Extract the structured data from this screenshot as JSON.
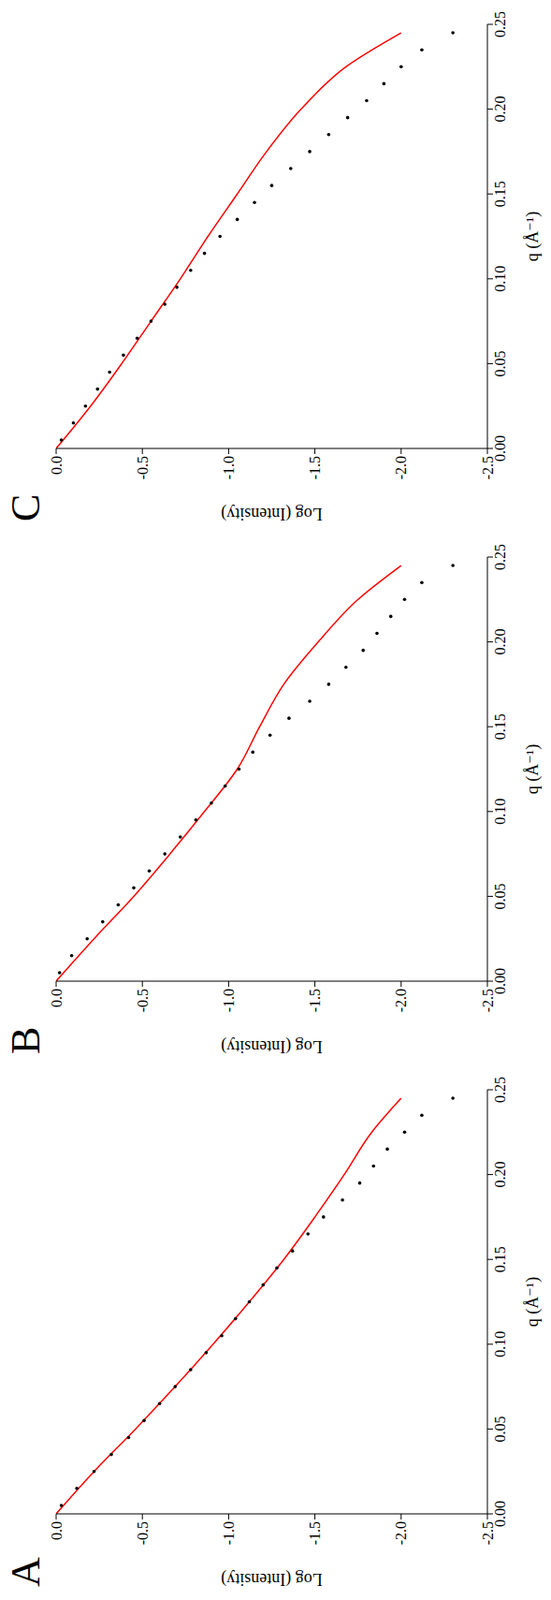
{
  "chart_data": [
    {
      "type": "scatter",
      "panel": "A",
      "x_label": "q (Å⁻¹)",
      "y_label": "Log (Intensity)",
      "xlim": [
        0,
        0.25
      ],
      "ylim": [
        -2.5,
        0
      ],
      "xticks": [
        {
          "value": 0,
          "label": "0.00"
        },
        0.05,
        {
          "value": 0.1,
          "label": "0.10"
        },
        0.15,
        {
          "value": 0.2,
          "label": "0.20"
        },
        0.25
      ],
      "yticks": [
        {
          "value": 0,
          "label": "0.0"
        },
        -0.5,
        {
          "value": -1,
          "label": "-1.0"
        },
        -1.5,
        {
          "value": -2,
          "label": "-2.0"
        },
        -2.5
      ],
      "series": [
        {
          "type": "scatter",
          "color": "#000000",
          "marker": "circle",
          "x": [
            0.005,
            0.015,
            0.025,
            0.035,
            0.045,
            0.055,
            0.065,
            0.075,
            0.085,
            0.095,
            0.105,
            0.115,
            0.125,
            0.135,
            0.145,
            0.155,
            0.165,
            0.175,
            0.185,
            0.195,
            0.205,
            0.215,
            0.225,
            0.235,
            0.245
          ],
          "values": [
            -0.03,
            -0.12,
            -0.22,
            -0.32,
            -0.42,
            -0.51,
            -0.6,
            -0.69,
            -0.78,
            -0.87,
            -0.96,
            -1.04,
            -1.12,
            -1.2,
            -1.28,
            -1.37,
            -1.46,
            -1.55,
            -1.66,
            -1.76,
            -1.84,
            -1.92,
            -2.02,
            -2.12,
            -2.3
          ]
        },
        {
          "type": "line",
          "color": "#ff0000",
          "line_style": "solid",
          "x": [
            0,
            0.025,
            0.05,
            0.075,
            0.1,
            0.125,
            0.15,
            0.175,
            0.2,
            0.225,
            0.245
          ],
          "values": [
            0,
            -0.22,
            -0.46,
            -0.69,
            -0.91,
            -1.12,
            -1.32,
            -1.5,
            -1.67,
            -1.83,
            -2.0
          ]
        }
      ]
    },
    {
      "type": "scatter",
      "panel": "B",
      "x_label": "q (Å⁻¹)",
      "y_label": "Log (Intensity)",
      "xlim": [
        0,
        0.25
      ],
      "ylim": [
        -2.5,
        0
      ],
      "xticks": [
        {
          "value": 0,
          "label": "0.00"
        },
        0.05,
        {
          "value": 0.1,
          "label": "0.10"
        },
        0.15,
        {
          "value": 0.2,
          "label": "0.20"
        },
        0.25
      ],
      "yticks": [
        {
          "value": 0,
          "label": "0.0"
        },
        -0.5,
        {
          "value": -1,
          "label": "-1.0"
        },
        -1.5,
        {
          "value": -2,
          "label": "-2.0"
        },
        -2.5
      ],
      "series": [
        {
          "type": "scatter",
          "color": "#000000",
          "marker": "circle",
          "x": [
            0.005,
            0.015,
            0.025,
            0.035,
            0.045,
            0.055,
            0.065,
            0.075,
            0.085,
            0.095,
            0.105,
            0.115,
            0.125,
            0.135,
            0.145,
            0.155,
            0.165,
            0.175,
            0.185,
            0.195,
            0.205,
            0.215,
            0.225,
            0.235,
            0.245
          ],
          "values": [
            -0.02,
            -0.09,
            -0.18,
            -0.27,
            -0.36,
            -0.45,
            -0.54,
            -0.63,
            -0.72,
            -0.81,
            -0.9,
            -0.98,
            -1.06,
            -1.14,
            -1.24,
            -1.35,
            -1.47,
            -1.58,
            -1.68,
            -1.78,
            -1.86,
            -1.94,
            -2.02,
            -2.12,
            -2.3
          ]
        },
        {
          "type": "line",
          "color": "#ff0000",
          "line_style": "solid",
          "x": [
            0,
            0.025,
            0.05,
            0.075,
            0.1,
            0.125,
            0.15,
            0.175,
            0.2,
            0.225,
            0.245
          ],
          "values": [
            0,
            -0.22,
            -0.45,
            -0.66,
            -0.86,
            -1.05,
            -1.18,
            -1.32,
            -1.52,
            -1.75,
            -2.0
          ]
        }
      ]
    },
    {
      "type": "scatter",
      "panel": "C",
      "x_label": "q (Å⁻¹)",
      "y_label": "Log (Intensity)",
      "xlim": [
        0,
        0.25
      ],
      "ylim": [
        -2.5,
        0
      ],
      "xticks": [
        {
          "value": 0,
          "label": "0.00"
        },
        0.05,
        {
          "value": 0.1,
          "label": "0.10"
        },
        0.15,
        {
          "value": 0.2,
          "label": "0.20"
        },
        0.25
      ],
      "yticks": [
        {
          "value": 0,
          "label": "0.0"
        },
        -0.5,
        {
          "value": -1,
          "label": "-1.0"
        },
        -1.5,
        {
          "value": -2,
          "label": "-2.0"
        },
        -2.5
      ],
      "series": [
        {
          "type": "scatter",
          "color": "#000000",
          "marker": "circle",
          "x": [
            0.005,
            0.015,
            0.025,
            0.035,
            0.045,
            0.055,
            0.065,
            0.075,
            0.085,
            0.095,
            0.105,
            0.115,
            0.125,
            0.135,
            0.145,
            0.155,
            0.165,
            0.175,
            0.185,
            0.195,
            0.205,
            0.215,
            0.225,
            0.235,
            0.245
          ],
          "values": [
            -0.03,
            -0.1,
            -0.17,
            -0.24,
            -0.31,
            -0.39,
            -0.47,
            -0.55,
            -0.63,
            -0.7,
            -0.78,
            -0.86,
            -0.95,
            -1.05,
            -1.15,
            -1.25,
            -1.36,
            -1.47,
            -1.58,
            -1.69,
            -1.8,
            -1.9,
            -2.0,
            -2.12,
            -2.3
          ]
        },
        {
          "type": "line",
          "color": "#ff0000",
          "line_style": "solid",
          "x": [
            0,
            0.025,
            0.05,
            0.075,
            0.1,
            0.125,
            0.15,
            0.175,
            0.2,
            0.225,
            0.245
          ],
          "values": [
            0,
            -0.2,
            -0.38,
            -0.55,
            -0.72,
            -0.88,
            -1.05,
            -1.22,
            -1.42,
            -1.68,
            -2.0
          ]
        }
      ]
    }
  ]
}
